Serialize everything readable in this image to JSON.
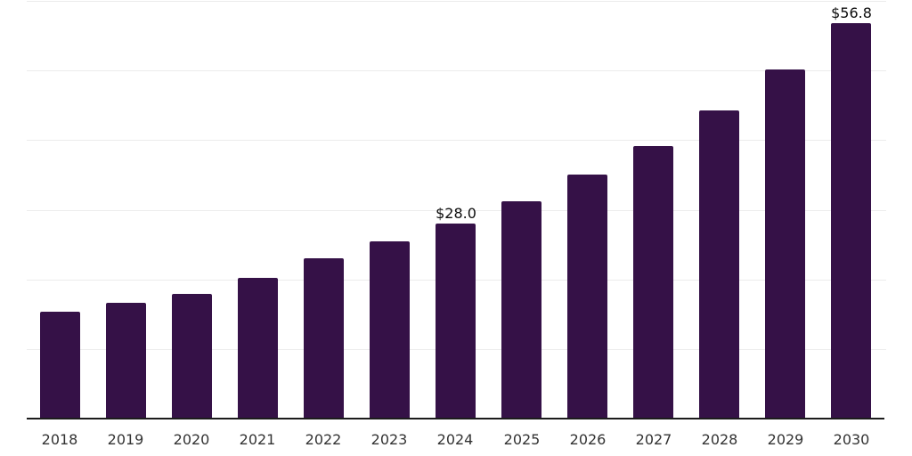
{
  "chart_data": {
    "type": "bar",
    "title": "",
    "xlabel": "",
    "ylabel": "",
    "categories": [
      "2018",
      "2019",
      "2020",
      "2021",
      "2022",
      "2023",
      "2024",
      "2025",
      "2026",
      "2027",
      "2028",
      "2029",
      "2030"
    ],
    "values": [
      15.3,
      16.6,
      17.9,
      20.2,
      23.0,
      25.4,
      28.0,
      31.2,
      35.0,
      39.1,
      44.3,
      50.1,
      56.8
    ],
    "bar_labels": [
      "",
      "",
      "",
      "",
      "",
      "",
      "$28.0",
      "",
      "",
      "",
      "",
      "",
      "$56.8"
    ],
    "ylim": [
      0,
      60
    ],
    "gridline_step": 10,
    "grid": "horizontal",
    "legend": "none",
    "y_tick_labels_visible": false
  },
  "colors": {
    "bar": "#351147",
    "gridline": "#ececec",
    "axis_line": "#1c1c1c",
    "tick_label": "#333333",
    "data_label": "#0d0d0d",
    "background": "#ffffff"
  }
}
